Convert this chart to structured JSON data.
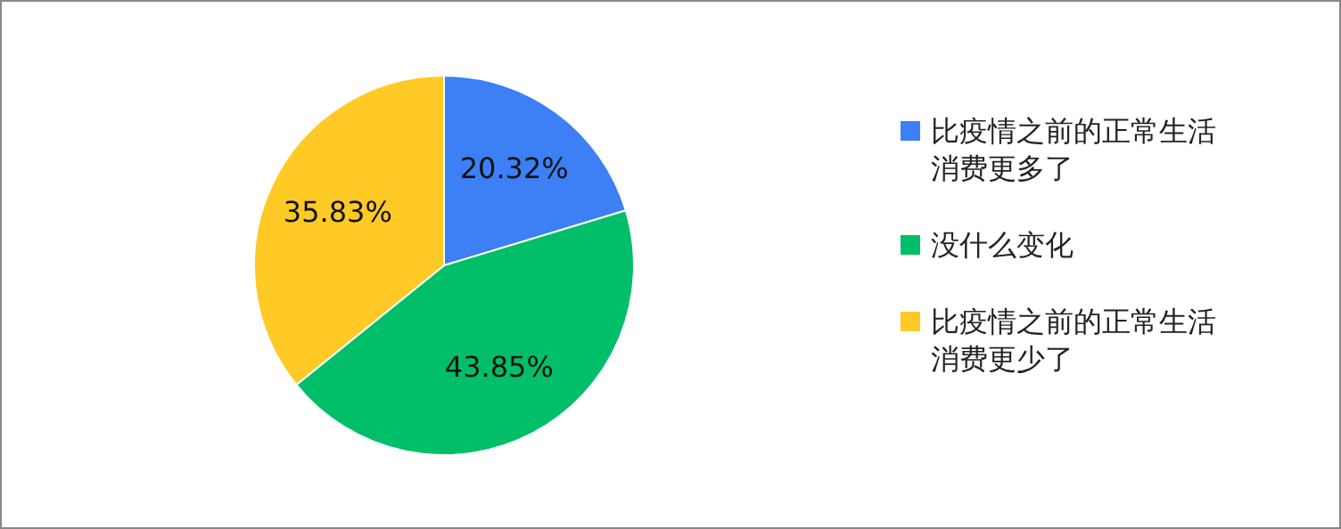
{
  "chart_data": {
    "type": "pie",
    "categories": [
      "比疫情之前的正常生活消费更多了",
      "没什么变化",
      "比疫情之前的正常生活消费更少了"
    ],
    "values": [
      20.32,
      43.85,
      35.83
    ],
    "colors": [
      "#3d80f5",
      "#00bf68",
      "#ffc926"
    ],
    "value_labels": [
      "20.32%",
      "43.85%",
      "35.83%"
    ],
    "legend": "right"
  }
}
